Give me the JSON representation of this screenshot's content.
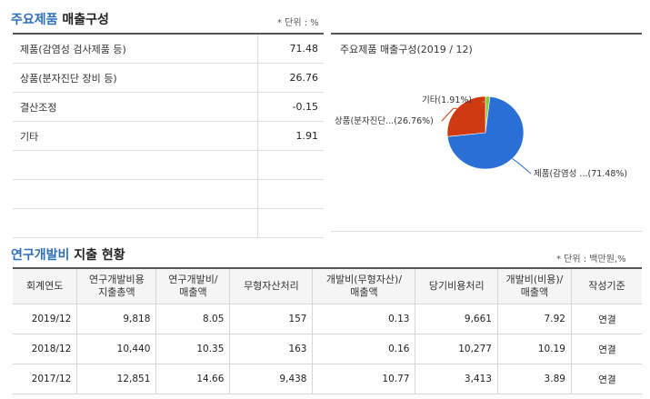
{
  "composition": {
    "title_part1": "주요제품",
    "title_part2": "매출구성",
    "unit": "* 단위 : %",
    "rows": [
      {
        "label": "제품(감염성 검사제품 등)",
        "value": "71.48"
      },
      {
        "label": "상품(분자진단 장비 등)",
        "value": "26.76"
      },
      {
        "label": "결산조정",
        "value": "-0.15"
      },
      {
        "label": "기타",
        "value": "1.91"
      },
      {
        "label": "",
        "value": ""
      },
      {
        "label": "",
        "value": ""
      },
      {
        "label": "",
        "value": ""
      }
    ]
  },
  "chart_data": {
    "type": "pie",
    "title": "주요제품 매출구성(2019 / 12)",
    "slices": [
      {
        "label": "제품(감염성 ...(71.48%)",
        "value": 71.48,
        "color": "#2a6fd6"
      },
      {
        "label": "상품(분자진단...(26.76%)",
        "value": 26.76,
        "color": "#cf3a12"
      },
      {
        "label": "기타(1.91%)",
        "value": 1.91,
        "color": "#8cc63f"
      }
    ]
  },
  "rnd": {
    "title_part1": "연구개발비",
    "title_part2": "지출 현황",
    "unit": "* 단위 : 백만원,%",
    "headers": [
      [
        "회계연도"
      ],
      [
        "연구개발비용",
        "지출총액"
      ],
      [
        "연구개발비/",
        "매출액"
      ],
      [
        "무형자산처리"
      ],
      [
        "개발비(무형자산)/",
        "매출액"
      ],
      [
        "당기비용처리"
      ],
      [
        "개발비(비용)/",
        "매출액"
      ],
      [
        "작성기준"
      ]
    ],
    "rows": [
      [
        "2019/12",
        "9,818",
        "8.05",
        "157",
        "0.13",
        "9,661",
        "7.92",
        "연결"
      ],
      [
        "2018/12",
        "10,440",
        "10.35",
        "163",
        "0.16",
        "10,277",
        "10.19",
        "연결"
      ],
      [
        "2017/12",
        "12,851",
        "14.66",
        "9,438",
        "10.77",
        "3,413",
        "3.89",
        "연결"
      ]
    ]
  }
}
